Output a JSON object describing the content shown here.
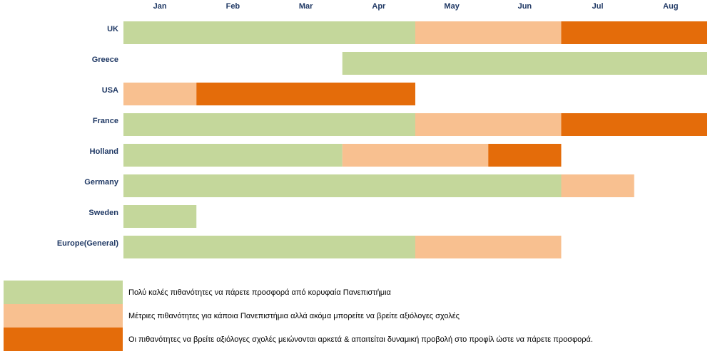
{
  "chart_data": {
    "type": "bar",
    "subtype": "timeline-gantt",
    "months": [
      "Jan",
      "Feb",
      "Mar",
      "Apr",
      "May",
      "Jun",
      "Jul",
      "Aug"
    ],
    "colors": {
      "good": "#c4d79b",
      "medium": "#f8c090",
      "low": "#e46c0a"
    },
    "rows": [
      {
        "label": "UK",
        "segments": [
          {
            "start": 0,
            "end": 4,
            "level": "good"
          },
          {
            "start": 4,
            "end": 6,
            "level": "medium"
          },
          {
            "start": 6,
            "end": 8,
            "level": "low"
          }
        ]
      },
      {
        "label": "Greece",
        "segments": [
          {
            "start": 3,
            "end": 8,
            "level": "good"
          }
        ]
      },
      {
        "label": "USA",
        "segments": [
          {
            "start": 0,
            "end": 1,
            "level": "medium"
          },
          {
            "start": 1,
            "end": 4,
            "level": "low"
          }
        ]
      },
      {
        "label": "France",
        "segments": [
          {
            "start": 0,
            "end": 4,
            "level": "good"
          },
          {
            "start": 4,
            "end": 6,
            "level": "medium"
          },
          {
            "start": 6,
            "end": 8,
            "level": "low"
          }
        ]
      },
      {
        "label": "Holland",
        "segments": [
          {
            "start": 0,
            "end": 3,
            "level": "good"
          },
          {
            "start": 3,
            "end": 5,
            "level": "medium"
          },
          {
            "start": 5,
            "end": 6,
            "level": "low"
          }
        ]
      },
      {
        "label": "Germany",
        "segments": [
          {
            "start": 0,
            "end": 6,
            "level": "good"
          },
          {
            "start": 6,
            "end": 7,
            "level": "medium"
          }
        ]
      },
      {
        "label": "Sweden",
        "segments": [
          {
            "start": 0,
            "end": 1,
            "level": "good"
          }
        ]
      },
      {
        "label": "Europe(General)",
        "segments": [
          {
            "start": 0,
            "end": 4,
            "level": "good"
          },
          {
            "start": 4,
            "end": 6,
            "level": "medium"
          }
        ]
      }
    ],
    "legend": [
      {
        "level": "good",
        "text": "Πολύ καλές πιθανότητες να πάρετε προσφορά από κορυφαία Πανεπιστήμια"
      },
      {
        "level": "medium",
        "text": "Μέτριες πιθανότητες για κάποια Πανεπιστήμια αλλά ακόμα μπορείτε να βρείτε αξιόλογες σχολές"
      },
      {
        "level": "low",
        "text": "Οι πιθανότητες να βρείτε αξιόλογες σχολές μειώνονται αρκετά & απαιτείται  δυναμική προβολή στο προφίλ ώστε να πάρετε προσφορά."
      }
    ]
  }
}
